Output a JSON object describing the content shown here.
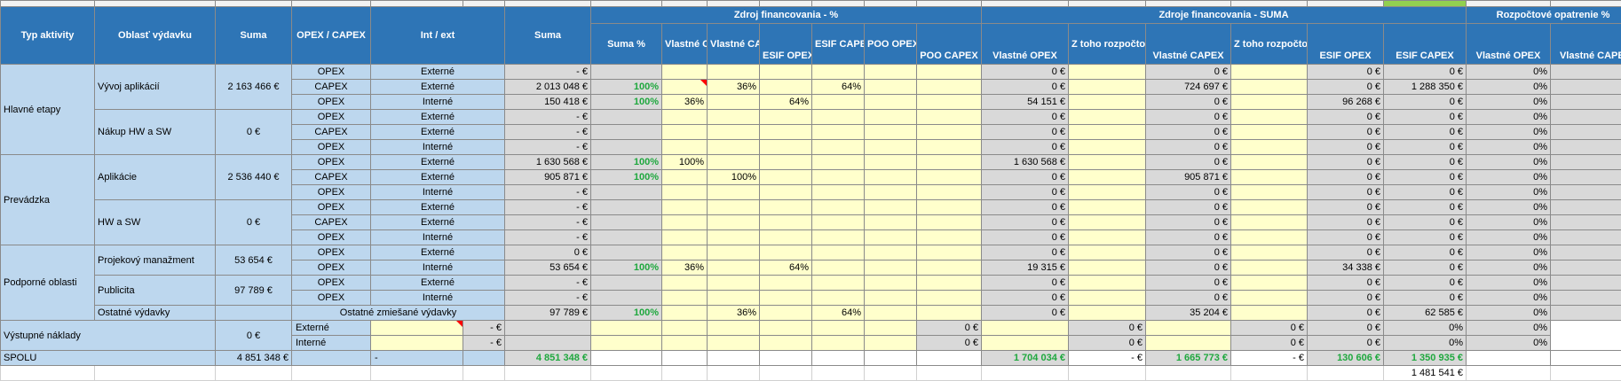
{
  "header": {
    "typ": "Typ aktivity",
    "oblast": "Oblasť výdavku",
    "suma": "Suma",
    "opex_capex": "OPEX / CAPEX",
    "int_ext": "Int / ext",
    "suma2": "Suma",
    "zdroj_pct": "Zdroj financovania - %",
    "zdroje_suma": "Zdroje financovania - SUMA",
    "rozpoctove": "Rozpočtové opatrenie %",
    "sub": {
      "suma_pct": "Suma %",
      "vlastne_opex": "Vlastné OPEX",
      "vlastne_capex": "Vlastné CAPEX",
      "esif_opex": "ESIF OPEX",
      "esif_capex": "ESIF CAPEX",
      "poo_opex": "POO OPEX",
      "poo_capex": "POO CAPEX",
      "s_vlastne_opex": "Vlastné OPEX",
      "s_ztoho1": "Z toho rozpočtové opatrenie",
      "s_vlastne_capex": "Vlastné CAPEX",
      "s_ztoho2": "Z toho rozpočtové opatrenie",
      "s_esif_opex": "ESIF OPEX",
      "s_esif_capex": "ESIF CAPEX",
      "r_vlastne_opex": "Vlastné OPEX",
      "r_vlastne_capex": "Vlastné CAPEX"
    }
  },
  "groups": {
    "hlavne": "Hlavné etapy",
    "prevadzka": "Prevádzka",
    "podporne": "Podporné oblasti",
    "vystupne": "Výstupné náklady"
  },
  "areas": {
    "vyvoj": {
      "name": "Vývoj aplikácií",
      "sum": "2 163 466 €"
    },
    "nakup": {
      "name": "Nákup HW a SW",
      "sum": "0 €"
    },
    "aplikacie": {
      "name": "Aplikácie",
      "sum": "2 536 440 €"
    },
    "hwsw": {
      "name": "HW a SW",
      "sum": "0 €"
    },
    "projekt": {
      "name": "Projekový manažment",
      "sum": "53 654 €"
    },
    "publicita": {
      "name": "Publicita",
      "sum": "97 789 €"
    },
    "ostatne": {
      "name": "Ostatné výdavky"
    },
    "vystupne": {
      "sum": "0 €"
    }
  },
  "rows": [
    {
      "type": "OPEX",
      "ie": "Externé",
      "suma": "- €",
      "spct": "",
      "vo": "",
      "vc": "",
      "eo": "",
      "ec": "",
      "po": "",
      "pc": "",
      "svo": "0 €",
      "sz1": "",
      "svc": "0 €",
      "sz2": "",
      "seo": "0 €",
      "sec": "0 €",
      "rvo": "0%",
      "rvc": "0%"
    },
    {
      "type": "CAPEX",
      "ie": "Externé",
      "suma": "2 013 048 €",
      "spct": "100%",
      "vo": "",
      "vc": "36%",
      "eo": "",
      "ec": "64%",
      "po": "",
      "pc": "",
      "svo": "0 €",
      "sz1": "",
      "svc": "724 697 €",
      "sz2": "",
      "seo": "0 €",
      "sec": "1 288 350 €",
      "rvo": "0%",
      "rvc": "0%"
    },
    {
      "type": "OPEX",
      "ie": "Interné",
      "suma": "150 418 €",
      "spct": "100%",
      "vo": "36%",
      "vc": "",
      "eo": "64%",
      "ec": "",
      "po": "",
      "pc": "",
      "svo": "54 151 €",
      "sz1": "",
      "svc": "0 €",
      "sz2": "",
      "seo": "96 268 €",
      "sec": "0 €",
      "rvo": "0%",
      "rvc": "0%"
    },
    {
      "type": "OPEX",
      "ie": "Externé",
      "suma": "- €",
      "spct": "",
      "vo": "",
      "vc": "",
      "eo": "",
      "ec": "",
      "po": "",
      "pc": "",
      "svo": "0 €",
      "sz1": "",
      "svc": "0 €",
      "sz2": "",
      "seo": "0 €",
      "sec": "0 €",
      "rvo": "0%",
      "rvc": "0%"
    },
    {
      "type": "CAPEX",
      "ie": "Externé",
      "suma": "- €",
      "spct": "",
      "vo": "",
      "vc": "",
      "eo": "",
      "ec": "",
      "po": "",
      "pc": "",
      "svo": "0 €",
      "sz1": "",
      "svc": "0 €",
      "sz2": "",
      "seo": "0 €",
      "sec": "0 €",
      "rvo": "0%",
      "rvc": "0%"
    },
    {
      "type": "OPEX",
      "ie": "Interné",
      "suma": "- €",
      "spct": "",
      "vo": "",
      "vc": "",
      "eo": "",
      "ec": "",
      "po": "",
      "pc": "",
      "svo": "0 €",
      "sz1": "",
      "svc": "0 €",
      "sz2": "",
      "seo": "0 €",
      "sec": "0 €",
      "rvo": "0%",
      "rvc": "0%"
    },
    {
      "type": "OPEX",
      "ie": "Externé",
      "suma": "1 630 568 €",
      "spct": "100%",
      "vo": "100%",
      "vc": "",
      "eo": "",
      "ec": "",
      "po": "",
      "pc": "",
      "svo": "1 630 568 €",
      "sz1": "",
      "svc": "0 €",
      "sz2": "",
      "seo": "0 €",
      "sec": "0 €",
      "rvo": "0%",
      "rvc": "0%"
    },
    {
      "type": "CAPEX",
      "ie": "Externé",
      "suma": "905 871 €",
      "spct": "100%",
      "vo": "",
      "vc": "100%",
      "eo": "",
      "ec": "",
      "po": "",
      "pc": "",
      "svo": "0 €",
      "sz1": "",
      "svc": "905 871 €",
      "sz2": "",
      "seo": "0 €",
      "sec": "0 €",
      "rvo": "0%",
      "rvc": "0%"
    },
    {
      "type": "OPEX",
      "ie": "Interné",
      "suma": "- €",
      "spct": "",
      "vo": "",
      "vc": "",
      "eo": "",
      "ec": "",
      "po": "",
      "pc": "",
      "svo": "0 €",
      "sz1": "",
      "svc": "0 €",
      "sz2": "",
      "seo": "0 €",
      "sec": "0 €",
      "rvo": "0%",
      "rvc": "0%"
    },
    {
      "type": "OPEX",
      "ie": "Externé",
      "suma": "- €",
      "spct": "",
      "vo": "",
      "vc": "",
      "eo": "",
      "ec": "",
      "po": "",
      "pc": "",
      "svo": "0 €",
      "sz1": "",
      "svc": "0 €",
      "sz2": "",
      "seo": "0 €",
      "sec": "0 €",
      "rvo": "0%",
      "rvc": "0%"
    },
    {
      "type": "CAPEX",
      "ie": "Externé",
      "suma": "- €",
      "spct": "",
      "vo": "",
      "vc": "",
      "eo": "",
      "ec": "",
      "po": "",
      "pc": "",
      "svo": "0 €",
      "sz1": "",
      "svc": "0 €",
      "sz2": "",
      "seo": "0 €",
      "sec": "0 €",
      "rvo": "0%",
      "rvc": "0%"
    },
    {
      "type": "OPEX",
      "ie": "Interné",
      "suma": "- €",
      "spct": "",
      "vo": "",
      "vc": "",
      "eo": "",
      "ec": "",
      "po": "",
      "pc": "",
      "svo": "0 €",
      "sz1": "",
      "svc": "0 €",
      "sz2": "",
      "seo": "0 €",
      "sec": "0 €",
      "rvo": "0%",
      "rvc": "0%"
    },
    {
      "type": "OPEX",
      "ie": "Externé",
      "suma": "0 €",
      "spct": "",
      "vo": "",
      "vc": "",
      "eo": "",
      "ec": "",
      "po": "",
      "pc": "",
      "svo": "0 €",
      "sz1": "",
      "svc": "0 €",
      "sz2": "",
      "seo": "0 €",
      "sec": "0 €",
      "rvo": "0%",
      "rvc": "0%"
    },
    {
      "type": "OPEX",
      "ie": "Interné",
      "suma": "53 654 €",
      "spct": "100%",
      "vo": "36%",
      "vc": "",
      "eo": "64%",
      "ec": "",
      "po": "",
      "pc": "",
      "svo": "19 315 €",
      "sz1": "",
      "svc": "0 €",
      "sz2": "",
      "seo": "34 338 €",
      "sec": "0 €",
      "rvo": "0%",
      "rvc": "0%"
    },
    {
      "type": "OPEX",
      "ie": "Externé",
      "suma": "- €",
      "spct": "",
      "vo": "",
      "vc": "",
      "eo": "",
      "ec": "",
      "po": "",
      "pc": "",
      "svo": "0 €",
      "sz1": "",
      "svc": "0 €",
      "sz2": "",
      "seo": "0 €",
      "sec": "0 €",
      "rvo": "0%",
      "rvc": "0%"
    },
    {
      "type": "OPEX",
      "ie": "Interné",
      "suma": "- €",
      "spct": "",
      "vo": "",
      "vc": "",
      "eo": "",
      "ec": "",
      "po": "",
      "pc": "",
      "svo": "0 €",
      "sz1": "",
      "svc": "0 €",
      "sz2": "",
      "seo": "0 €",
      "sec": "0 €",
      "rvo": "0%",
      "rvc": "0%"
    },
    {
      "type": "",
      "ie": "Ostatné zmiešané výdavky",
      "suma": "97 789 €",
      "spct": "100%",
      "vo": "",
      "vc": "36%",
      "eo": "",
      "ec": "64%",
      "po": "",
      "pc": "",
      "svo": "0 €",
      "sz1": "",
      "svc": "35 204 €",
      "sz2": "",
      "seo": "0 €",
      "sec": "62 585 €",
      "rvo": "0%",
      "rvc": "0%"
    },
    {
      "type": "",
      "ie": "Externé",
      "suma": "- €",
      "spct": "",
      "vo": "",
      "vc": "",
      "eo": "",
      "ec": "",
      "po": "",
      "pc": "",
      "svo": "0 €",
      "sz1": "",
      "svc": "0 €",
      "sz2": "",
      "seo": "0 €",
      "sec": "0 €",
      "rvo": "0%",
      "rvc": "0%"
    },
    {
      "type": "",
      "ie": "Interné",
      "suma": "- €",
      "spct": "",
      "vo": "",
      "vc": "",
      "eo": "",
      "ec": "",
      "po": "",
      "pc": "",
      "svo": "0 €",
      "sz1": "",
      "svc": "0 €",
      "sz2": "",
      "seo": "0 €",
      "sec": "0 €",
      "rvo": "0%",
      "rvc": "0%"
    }
  ],
  "total": {
    "label": "SPOLU",
    "suma": "4 851 348 €",
    "ie": "-",
    "suma2": "4 851 348 €",
    "svo": "1 704 034 €",
    "sz1": "- €",
    "svc": "1 665 773 €",
    "sz2": "- €",
    "seo": "130 606 €",
    "sec": "1 350 935 €"
  },
  "extra": {
    "value": "1 481 541 €"
  }
}
